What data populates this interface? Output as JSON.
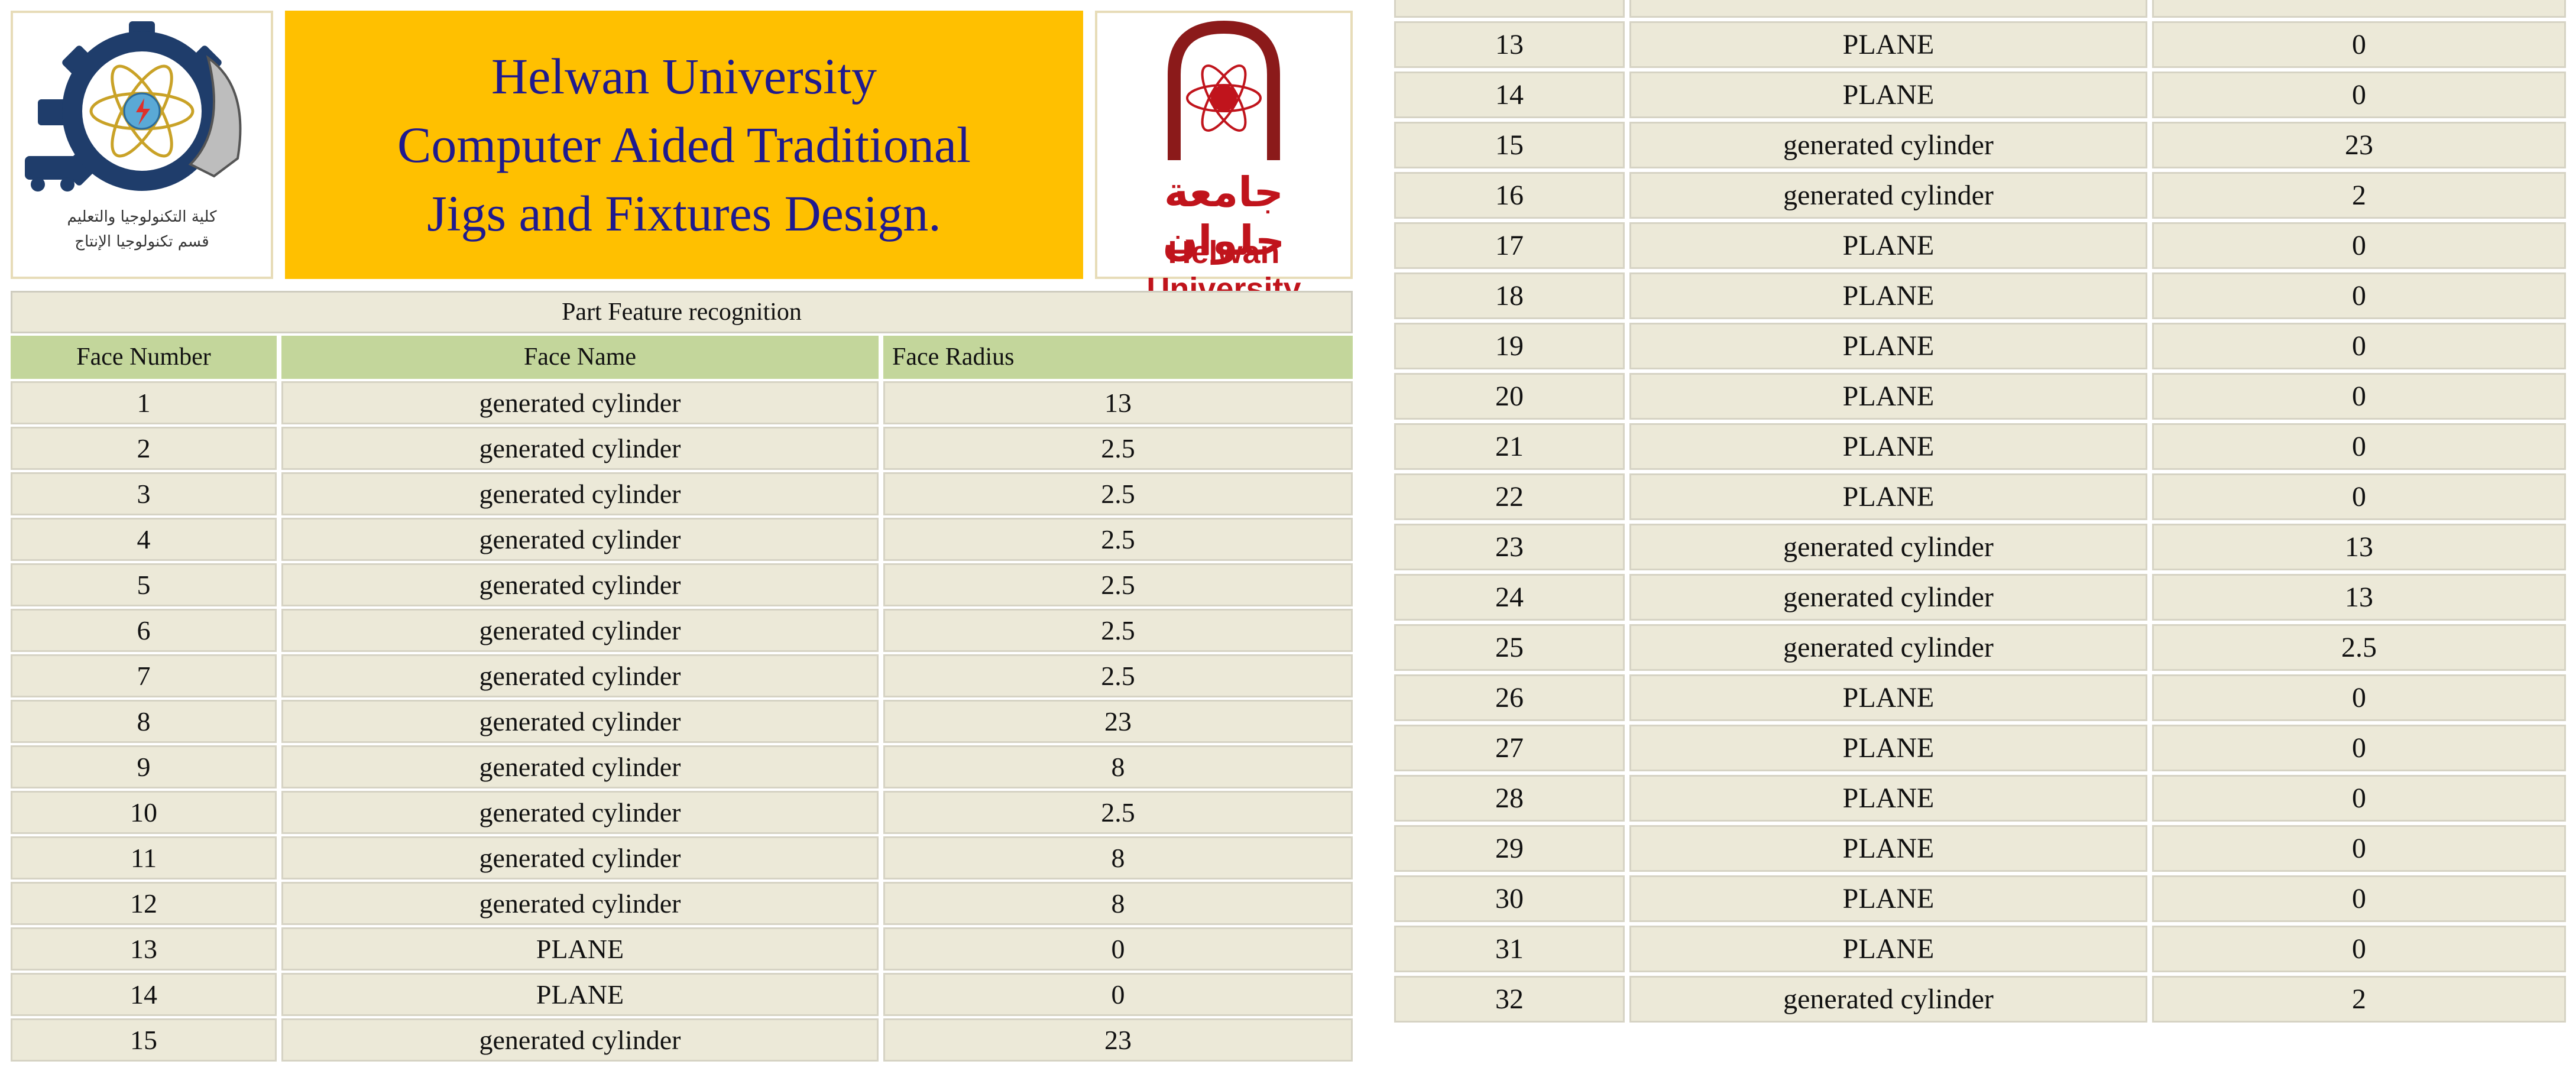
{
  "header": {
    "banner_lines": [
      "Helwan University",
      "Computer Aided Traditional",
      "Jigs and Fixtures Design."
    ],
    "left_logo_caption": [
      "كلية التكنولوجيا والتعليم",
      "قسم تكنولوجيا الإنتاج"
    ],
    "right_logo_arabic": "جامعة حلوان",
    "right_logo_latin": "Helwan University"
  },
  "table": {
    "title": "Part Feature recognition",
    "columns": [
      "Face Number",
      "Face Name",
      "Face Radius"
    ]
  },
  "left_rows": [
    {
      "n": "1",
      "name": "generated cylinder",
      "r": "13"
    },
    {
      "n": "2",
      "name": "generated cylinder",
      "r": "2.5"
    },
    {
      "n": "3",
      "name": "generated cylinder",
      "r": "2.5"
    },
    {
      "n": "4",
      "name": "generated cylinder",
      "r": "2.5"
    },
    {
      "n": "5",
      "name": "generated cylinder",
      "r": "2.5"
    },
    {
      "n": "6",
      "name": "generated cylinder",
      "r": "2.5"
    },
    {
      "n": "7",
      "name": "generated cylinder",
      "r": "2.5"
    },
    {
      "n": "8",
      "name": "generated cylinder",
      "r": "23"
    },
    {
      "n": "9",
      "name": "generated cylinder",
      "r": "8"
    },
    {
      "n": "10",
      "name": "generated cylinder",
      "r": "2.5"
    },
    {
      "n": "11",
      "name": "generated cylinder",
      "r": "8"
    },
    {
      "n": "12",
      "name": "generated cylinder",
      "r": "8"
    },
    {
      "n": "13",
      "name": "PLANE",
      "r": "0"
    },
    {
      "n": "14",
      "name": "PLANE",
      "r": "0"
    },
    {
      "n": "15",
      "name": "generated cylinder",
      "r": "23"
    }
  ],
  "right_rows": [
    {
      "n": "13",
      "name": "PLANE",
      "r": "0"
    },
    {
      "n": "14",
      "name": "PLANE",
      "r": "0"
    },
    {
      "n": "15",
      "name": "generated cylinder",
      "r": "23"
    },
    {
      "n": "16",
      "name": "generated cylinder",
      "r": "2"
    },
    {
      "n": "17",
      "name": "PLANE",
      "r": "0"
    },
    {
      "n": "18",
      "name": "PLANE",
      "r": "0"
    },
    {
      "n": "19",
      "name": "PLANE",
      "r": "0"
    },
    {
      "n": "20",
      "name": "PLANE",
      "r": "0"
    },
    {
      "n": "21",
      "name": "PLANE",
      "r": "0"
    },
    {
      "n": "22",
      "name": "PLANE",
      "r": "0"
    },
    {
      "n": "23",
      "name": "generated cylinder",
      "r": "13"
    },
    {
      "n": "24",
      "name": "generated cylinder",
      "r": "13"
    },
    {
      "n": "25",
      "name": "generated cylinder",
      "r": "2.5"
    },
    {
      "n": "26",
      "name": "PLANE",
      "r": "0"
    },
    {
      "n": "27",
      "name": "PLANE",
      "r": "0"
    },
    {
      "n": "28",
      "name": "PLANE",
      "r": "0"
    },
    {
      "n": "29",
      "name": "PLANE",
      "r": "0"
    },
    {
      "n": "30",
      "name": "PLANE",
      "r": "0"
    },
    {
      "n": "31",
      "name": "PLANE",
      "r": "0"
    },
    {
      "n": "32",
      "name": "generated cylinder",
      "r": "2"
    }
  ]
}
